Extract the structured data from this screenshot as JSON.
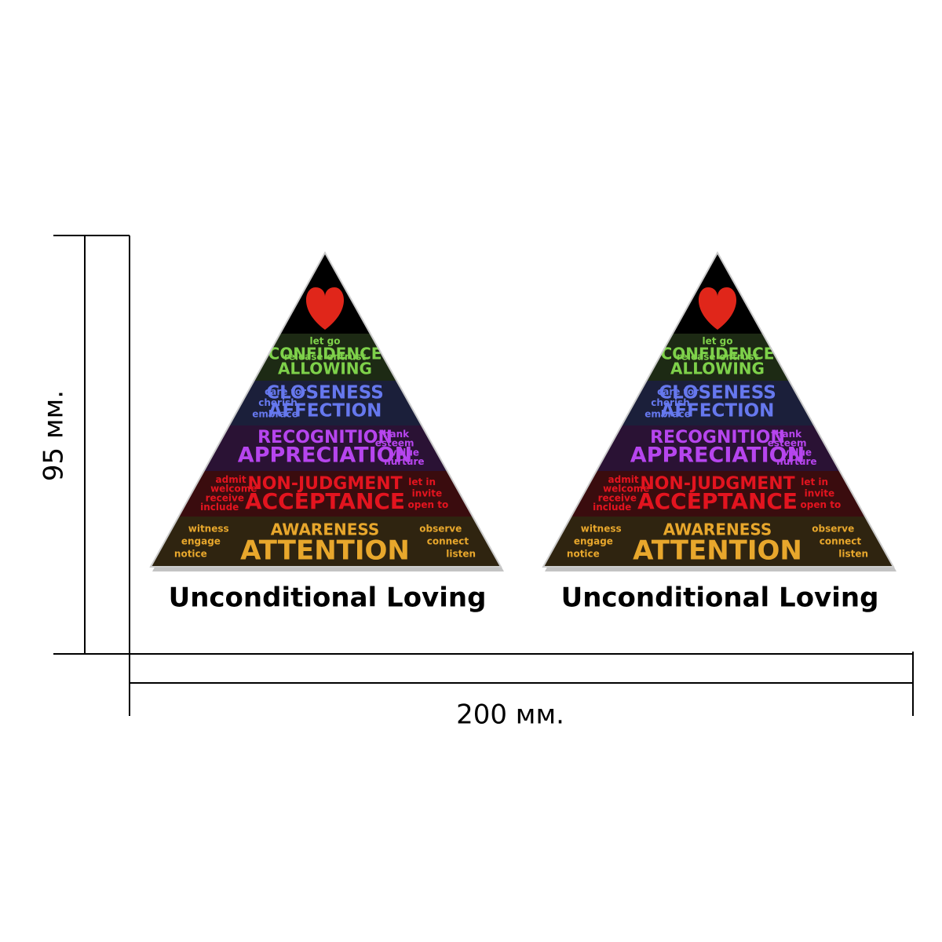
{
  "dimensions": {
    "height": "95 мм.",
    "width": "200 мм."
  },
  "sticker": {
    "caption": "Unconditional Loving",
    "layers": [
      {
        "main": [
          "CONFIDENCE",
          "ALLOWING"
        ],
        "left": [
          "release"
        ],
        "center": [
          "let go"
        ],
        "right": [
          "entrust"
        ]
      },
      {
        "main": [
          "CLOSENESS",
          "AFFECTION"
        ],
        "left": [
          "care for",
          "cherish",
          "embrace"
        ],
        "center": [],
        "right": []
      },
      {
        "main": [
          "RECOGNITION",
          "APPRECIATION"
        ],
        "left": [],
        "center": [],
        "right": [
          "thank",
          "esteem",
          "value",
          "nurture"
        ]
      },
      {
        "main": [
          "NON-JUDGMENT",
          "ACCEPTANCE"
        ],
        "left": [
          "admit",
          "welcome",
          "receive",
          "include"
        ],
        "center": [],
        "right": [
          "let in",
          "invite",
          "open to"
        ]
      },
      {
        "main": [
          "AWARENESS",
          "ATTENTION"
        ],
        "left": [
          "witness",
          "engage",
          "notice"
        ],
        "center": [],
        "right": [
          "observe",
          "connect",
          "listen"
        ]
      }
    ]
  }
}
